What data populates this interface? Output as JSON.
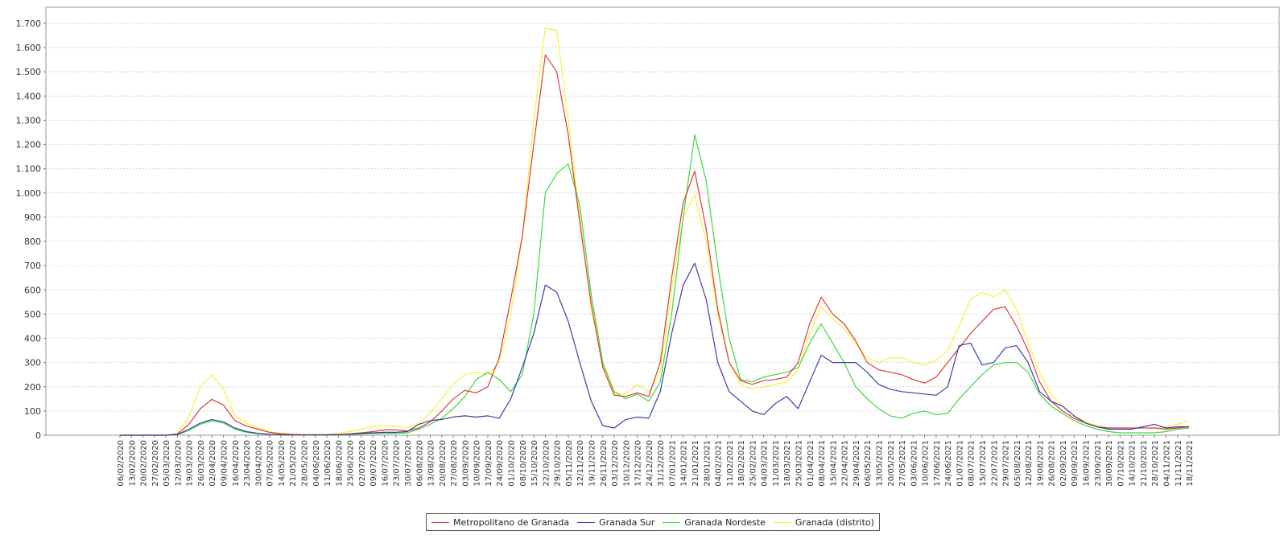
{
  "chart_data": {
    "type": "line",
    "title": "",
    "xlabel": "",
    "ylabel": "",
    "ylim": [
      0,
      1700
    ],
    "y_ticks": [
      "0",
      "100",
      "200",
      "300",
      "400",
      "500",
      "600",
      "700",
      "800",
      "900",
      "1.000",
      "1.100",
      "1.200",
      "1.300",
      "1.400",
      "1.500",
      "1.600",
      "1.700"
    ],
    "grid": true,
    "legend_position": "bottom",
    "x": [
      "06/02/2020",
      "13/02/2020",
      "20/02/2020",
      "27/02/2020",
      "05/03/2020",
      "12/03/2020",
      "19/03/2020",
      "26/03/2020",
      "02/04/2020",
      "09/04/2020",
      "16/04/2020",
      "23/04/2020",
      "30/04/2020",
      "07/05/2020",
      "14/05/2020",
      "21/05/2020",
      "28/05/2020",
      "04/06/2020",
      "11/06/2020",
      "18/06/2020",
      "25/06/2020",
      "02/07/2020",
      "09/07/2020",
      "16/07/2020",
      "23/07/2020",
      "30/07/2020",
      "06/08/2020",
      "13/08/2020",
      "20/08/2020",
      "27/08/2020",
      "03/09/2020",
      "10/09/2020",
      "17/09/2020",
      "24/09/2020",
      "01/10/2020",
      "08/10/2020",
      "15/10/2020",
      "22/10/2020",
      "29/10/2020",
      "05/11/2020",
      "12/11/2020",
      "19/11/2020",
      "26/11/2020",
      "03/12/2020",
      "10/12/2020",
      "17/12/2020",
      "24/12/2020",
      "31/12/2020",
      "07/01/2021",
      "14/01/2021",
      "21/01/2021",
      "28/01/2021",
      "04/02/2021",
      "11/02/2021",
      "18/02/2021",
      "25/02/2021",
      "04/03/2021",
      "11/03/2021",
      "18/03/2021",
      "25/03/2021",
      "01/04/2021",
      "08/04/2021",
      "15/04/2021",
      "22/04/2021",
      "29/04/2021",
      "06/05/2021",
      "13/05/2021",
      "20/05/2021",
      "27/05/2021",
      "03/06/2021",
      "10/06/2021",
      "17/06/2021",
      "24/06/2021",
      "01/07/2021",
      "08/07/2021",
      "15/07/2021",
      "22/07/2021",
      "29/07/2021",
      "05/08/2021",
      "12/08/2021",
      "19/08/2021",
      "26/08/2021",
      "02/09/2021",
      "09/09/2021",
      "16/09/2021",
      "23/09/2021",
      "30/09/2021",
      "07/10/2021",
      "14/10/2021",
      "21/10/2021",
      "28/10/2021",
      "04/11/2021",
      "11/11/2021",
      "18/11/2021"
    ],
    "series": [
      {
        "name": "Metropolitano de Granada",
        "color": "#e0393e",
        "values": [
          0,
          0,
          0,
          0,
          0,
          5,
          45,
          110,
          148,
          125,
          60,
          38,
          25,
          12,
          6,
          3,
          2,
          2,
          2,
          3,
          6,
          10,
          15,
          22,
          22,
          18,
          30,
          55,
          100,
          150,
          185,
          175,
          200,
          320,
          560,
          820,
          1200,
          1570,
          1500,
          1240,
          880,
          540,
          280,
          165,
          160,
          175,
          160,
          300,
          650,
          960,
          1090,
          850,
          520,
          300,
          225,
          210,
          225,
          230,
          240,
          300,
          460,
          570,
          500,
          460,
          390,
          300,
          270,
          260,
          250,
          230,
          215,
          240,
          300,
          360,
          420,
          470,
          520,
          530,
          450,
          350,
          220,
          140,
          100,
          70,
          50,
          35,
          30,
          30,
          30,
          30,
          30,
          25,
          30,
          35
        ]
      },
      {
        "name": "Granada Sur",
        "color": "#3d3daa",
        "values": [
          0,
          0,
          0,
          0,
          0,
          3,
          25,
          50,
          65,
          55,
          30,
          15,
          8,
          4,
          2,
          1,
          1,
          1,
          1,
          2,
          4,
          8,
          10,
          12,
          12,
          15,
          45,
          60,
          65,
          75,
          80,
          75,
          80,
          70,
          150,
          280,
          420,
          620,
          590,
          470,
          300,
          140,
          40,
          30,
          65,
          75,
          70,
          180,
          420,
          620,
          710,
          560,
          300,
          180,
          140,
          100,
          85,
          130,
          160,
          110,
          220,
          330,
          300,
          300,
          300,
          260,
          210,
          190,
          180,
          175,
          170,
          165,
          200,
          370,
          380,
          290,
          300,
          360,
          370,
          300,
          180,
          140,
          120,
          80,
          50,
          35,
          25,
          25,
          25,
          35,
          45,
          30,
          35,
          35
        ]
      },
      {
        "name": "Granada Nordeste",
        "color": "#3dd93d",
        "values": [
          0,
          0,
          0,
          0,
          0,
          2,
          20,
          45,
          60,
          50,
          25,
          12,
          6,
          3,
          2,
          1,
          1,
          1,
          1,
          2,
          3,
          5,
          7,
          8,
          8,
          10,
          25,
          45,
          70,
          110,
          160,
          230,
          260,
          230,
          180,
          250,
          500,
          1000,
          1080,
          1120,
          950,
          580,
          300,
          180,
          150,
          170,
          140,
          220,
          500,
          900,
          1240,
          1050,
          700,
          400,
          230,
          220,
          240,
          250,
          260,
          280,
          380,
          460,
          380,
          300,
          200,
          150,
          110,
          80,
          70,
          90,
          100,
          85,
          90,
          150,
          200,
          250,
          290,
          300,
          300,
          260,
          170,
          120,
          90,
          60,
          40,
          25,
          15,
          10,
          10,
          10,
          10,
          15,
          25,
          30
        ]
      },
      {
        "name": "Granada (distrito)",
        "color": "#f4f43c",
        "values": [
          0,
          0,
          0,
          0,
          0,
          8,
          80,
          200,
          250,
          190,
          80,
          50,
          30,
          15,
          8,
          5,
          3,
          3,
          4,
          8,
          15,
          25,
          35,
          40,
          38,
          30,
          50,
          90,
          150,
          210,
          250,
          260,
          250,
          300,
          500,
          820,
          1300,
          1680,
          1670,
          1300,
          900,
          520,
          290,
          170,
          170,
          210,
          180,
          260,
          600,
          900,
          990,
          800,
          500,
          300,
          210,
          190,
          200,
          210,
          220,
          270,
          420,
          530,
          480,
          440,
          380,
          320,
          300,
          320,
          320,
          300,
          290,
          310,
          350,
          450,
          560,
          590,
          570,
          600,
          520,
          380,
          260,
          170,
          120,
          80,
          55,
          40,
          30,
          30,
          30,
          30,
          30,
          35,
          45,
          60
        ]
      }
    ]
  }
}
